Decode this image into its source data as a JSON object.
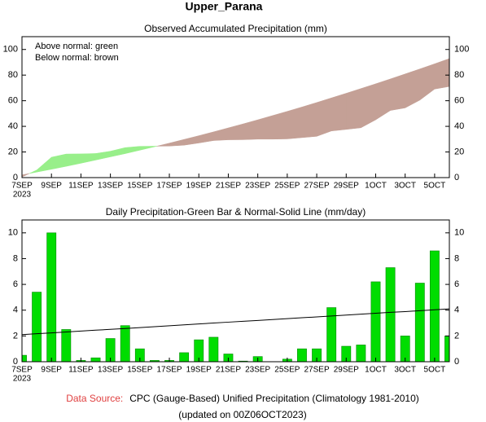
{
  "title": "Upper_Parana",
  "footer": {
    "source_label": "Data Source:",
    "source": "CPC (Gauge-Based) Unified Precipitation (Climatology 1981-2010)",
    "updated": "(updated on 00Z06OCT2023)"
  },
  "chart_data": [
    {
      "type": "area",
      "title": "Observed Accumulated Precipitation (mm)",
      "legend_text": [
        "Above normal: green",
        "Below normal: brown"
      ],
      "legend": "upper-left",
      "categories": [
        "7SEP",
        null,
        "9SEP",
        null,
        "11SEP",
        null,
        "13SEP",
        null,
        "15SEP",
        null,
        "17SEP",
        null,
        "19SEP",
        null,
        "21SEP",
        null,
        "23SEP",
        null,
        "25SEP",
        null,
        "27SEP",
        null,
        "29SEP",
        null,
        "1OCT",
        null,
        "3OCT",
        null,
        "5OCT",
        null
      ],
      "year": "2023",
      "observed_values": [
        0.5,
        5.9,
        15.9,
        18.4,
        18.5,
        18.8,
        20.6,
        23.4,
        24.4,
        24.5,
        24.6,
        25.3,
        27.0,
        28.9,
        29.5,
        29.6,
        30.0,
        30.0,
        30.2,
        31.2,
        32.2,
        36.4,
        37.6,
        38.9,
        45.1,
        52.4,
        54.4,
        60.5,
        69.1,
        71.1
      ],
      "normal_values": [
        2.1,
        4.3,
        6.5,
        8.8,
        11.2,
        13.7,
        16.2,
        18.7,
        21.4,
        24.1,
        26.9,
        29.8,
        32.7,
        35.7,
        38.8,
        41.9,
        45.1,
        48.4,
        51.7,
        55.1,
        58.6,
        62.2,
        65.8,
        69.5,
        73.2,
        77.0,
        80.9,
        84.8,
        88.8,
        92.9
      ],
      "above_color": "#98ef8a",
      "below_color": "#c4a096",
      "ylim": [
        0,
        110
      ],
      "yticks": [
        0,
        20,
        40,
        60,
        80,
        100
      ]
    },
    {
      "type": "bar",
      "title": "Daily Precipitation-Green Bar & Normal-Solid Line (mm/day)",
      "categories": [
        "7SEP",
        null,
        "9SEP",
        null,
        "11SEP",
        null,
        "13SEP",
        null,
        "15SEP",
        null,
        "17SEP",
        null,
        "19SEP",
        null,
        "21SEP",
        null,
        "23SEP",
        null,
        "25SEP",
        null,
        "27SEP",
        null,
        "29SEP",
        null,
        "1OCT",
        null,
        "3OCT",
        null,
        "5OCT",
        null
      ],
      "year": "2023",
      "values": [
        0.5,
        5.4,
        10.0,
        2.5,
        0.1,
        0.3,
        1.8,
        2.8,
        1.0,
        0.1,
        0.1,
        0.7,
        1.7,
        1.9,
        0.6,
        0.05,
        0.4,
        0.0,
        0.2,
        1.0,
        1.0,
        4.2,
        1.2,
        1.3,
        6.2,
        7.3,
        2.0,
        6.1,
        8.6,
        2.0
      ],
      "normal_values": [
        2.1,
        2.17,
        2.24,
        2.31,
        2.38,
        2.45,
        2.51,
        2.58,
        2.65,
        2.72,
        2.79,
        2.86,
        2.93,
        3.0,
        3.07,
        3.14,
        3.2,
        3.27,
        3.34,
        3.41,
        3.48,
        3.55,
        3.62,
        3.69,
        3.76,
        3.83,
        3.89,
        3.96,
        4.03,
        4.1
      ],
      "color": "#00dd00",
      "line_color": "#000000",
      "ylim": [
        0,
        11
      ],
      "yticks": [
        0,
        2,
        4,
        6,
        8,
        10
      ]
    }
  ]
}
